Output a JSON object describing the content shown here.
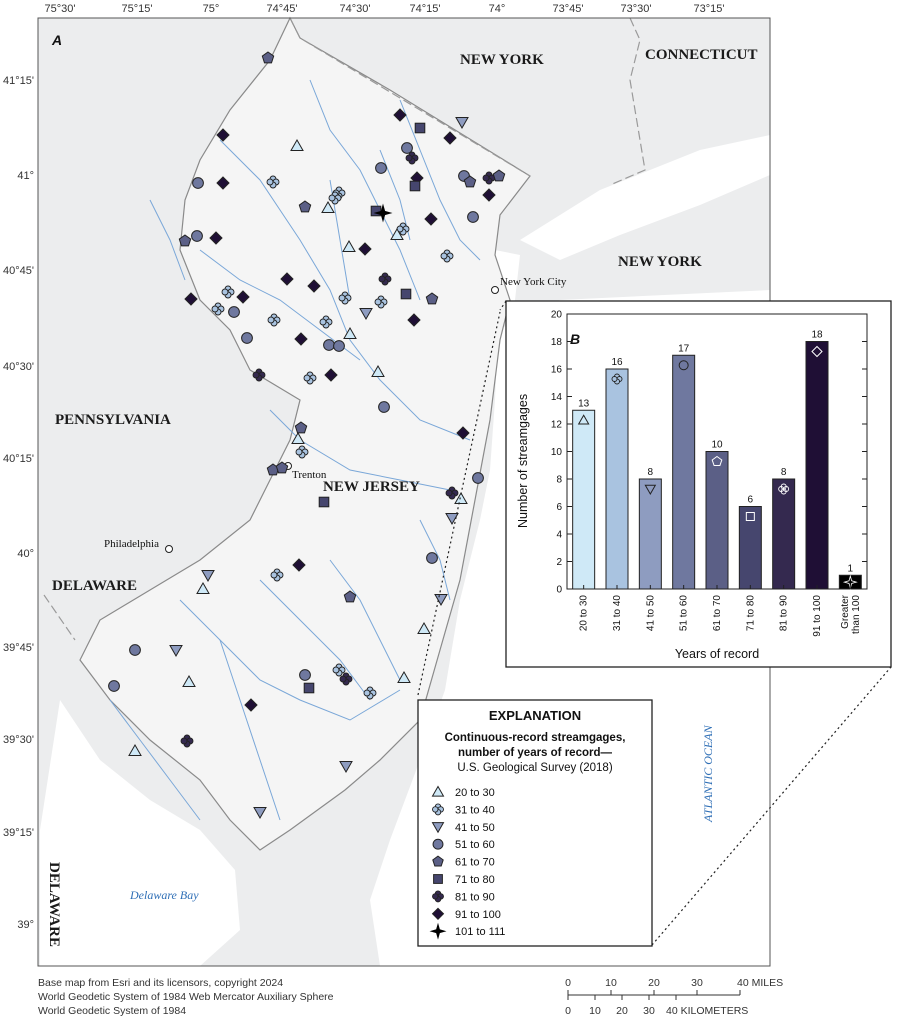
{
  "panel_labels": {
    "map": "A",
    "chart": "B"
  },
  "longitude_ticks": [
    "75°30'",
    "75°15'",
    "75°",
    "74°45'",
    "74°30'",
    "74°15'",
    "74°",
    "73°45'",
    "73°30'",
    "73°15'"
  ],
  "latitude_ticks": [
    "41°15'",
    "41°",
    "40°45'",
    "40°30'",
    "40°15'",
    "40°",
    "39°45'",
    "39°30'",
    "39°15'",
    "39°"
  ],
  "state_labels": {
    "new_york_top": "NEW YORK",
    "connecticut": "CONNECTICUT",
    "new_york_right": "NEW YORK",
    "pennsylvania": "PENNSYLVANIA",
    "new_jersey": "NEW JERSEY",
    "delaware_mid": "DELAWARE",
    "delaware_bottom": "DELAWARE"
  },
  "places": {
    "nyc": "New York City",
    "trenton": "Trenton",
    "philadelphia": "Philadelphia"
  },
  "water_labels": {
    "atlantic": "ATLANTIC OCEAN",
    "delaware_bay": "Delaware Bay"
  },
  "credits": [
    "Base map from Esri and its licensors, copyright 2024",
    "World Geodetic System of 1984 Web Mercator Auxiliary Sphere",
    "World Geodetic System of 1984"
  ],
  "scale_bar": {
    "miles_ticks": [
      "0",
      "10",
      "20",
      "30",
      "40 MILES"
    ],
    "km_ticks": [
      "0",
      "10",
      "20",
      "30",
      "40 KILOMETERS"
    ]
  },
  "explanation": {
    "title": "EXPLANATION",
    "subtitle_line1": "Continuous-record streamgages,",
    "subtitle_line2": "number of years of record—",
    "subtitle_line3": "U.S. Geological Survey (2018)",
    "items": [
      {
        "label": "20 to 30",
        "symbol": "triangle-up",
        "color": "#cfe9f7"
      },
      {
        "label": "31 to 40",
        "symbol": "quatrefoil",
        "color": "#a9c3e0"
      },
      {
        "label": "41 to 50",
        "symbol": "triangle-down",
        "color": "#8e9cc0"
      },
      {
        "label": "51 to 60",
        "symbol": "circle",
        "color": "#6f789f"
      },
      {
        "label": "61 to 70",
        "symbol": "pentagon",
        "color": "#5b5f86"
      },
      {
        "label": "71 to 80",
        "symbol": "square",
        "color": "#46466e"
      },
      {
        "label": "81 to 90",
        "symbol": "quatrefoil",
        "color": "#34294f"
      },
      {
        "label": "91 to 100",
        "symbol": "diamond",
        "color": "#1f0f35"
      },
      {
        "label": "101 to 111",
        "symbol": "star4",
        "color": "#000000"
      }
    ]
  },
  "chart_data": {
    "type": "bar",
    "categories": [
      "20 to 30",
      "31 to 40",
      "41 to 50",
      "51 to 60",
      "61 to 70",
      "71 to 80",
      "81 to 90",
      "91 to 100",
      "Greater than 100"
    ],
    "category_lines": [
      [
        "20 to 30"
      ],
      [
        "31 to 40"
      ],
      [
        "41 to 50"
      ],
      [
        "51 to 60"
      ],
      [
        "61 to 70"
      ],
      [
        "71 to 80"
      ],
      [
        "81 to 90"
      ],
      [
        "91 to 100"
      ],
      [
        "Greater",
        "than 100"
      ]
    ],
    "values": [
      13,
      16,
      8,
      17,
      10,
      6,
      8,
      18,
      1
    ],
    "value_labels": [
      "13",
      "16",
      "8",
      "17",
      "10",
      "6",
      "8",
      "18",
      "1"
    ],
    "colors": [
      "#cfe9f7",
      "#a9c3e0",
      "#8e9cc0",
      "#6f789f",
      "#5b5f86",
      "#46466e",
      "#34294f",
      "#1f0f35",
      "#000000"
    ],
    "symbols": [
      "triangle-up",
      "quatrefoil",
      "triangle-down",
      "circle",
      "pentagon",
      "square",
      "quatrefoil",
      "diamond",
      "star4"
    ],
    "xlabel": "Years of record",
    "ylabel": "Number of streamgages",
    "ylim": [
      0,
      20
    ],
    "yticks": [
      "0",
      "2",
      "4",
      "6",
      "8",
      "10",
      "12",
      "14",
      "16",
      "18",
      "20"
    ],
    "grid": false
  },
  "map_symbols": {
    "a": "triangle-up",
    "b": "quatrefoil",
    "c": "triangle-down",
    "d": "circle",
    "e": "pentagon",
    "f": "square",
    "g": "quatrefoil",
    "h": "diamond",
    "i": "star4"
  },
  "map_symbol_colors": {
    "a": "#cfe9f7",
    "b": "#a9c3e0",
    "c": "#8e9cc0",
    "d": "#6f789f",
    "e": "#5b5f86",
    "f": "#46466e",
    "g": "#34294f",
    "h": "#1f0f35",
    "i": "#000000"
  }
}
